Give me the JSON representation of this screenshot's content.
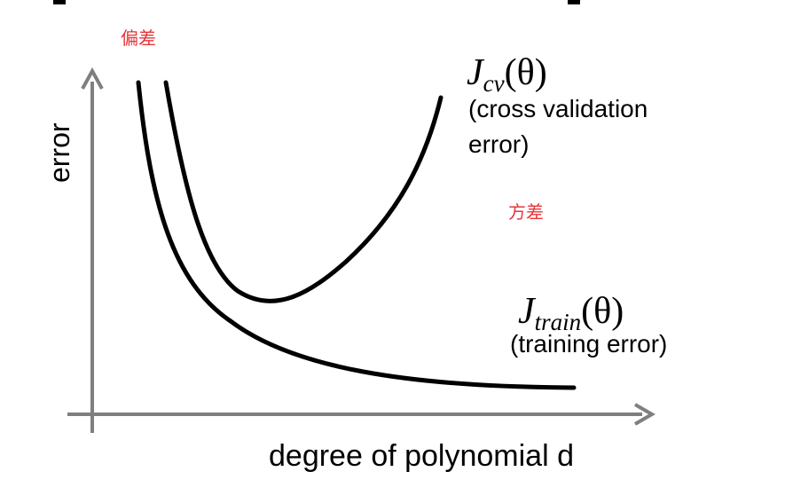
{
  "annotations": {
    "bias": "偏差",
    "variance": "方差"
  },
  "axes": {
    "y_label": "error",
    "x_label": "degree of polynomial d"
  },
  "curves": {
    "cv": {
      "symbol": "J",
      "subscript": "cv",
      "argument": "(θ)",
      "description_line1": "(cross validation",
      "description_line2": "error)"
    },
    "train": {
      "symbol": "J",
      "subscript": "train",
      "argument": "(θ)",
      "description": "(training error)"
    }
  },
  "colors": {
    "axis": "#7f7f7f",
    "curve": "#000000",
    "annotation": "#e8363a"
  }
}
